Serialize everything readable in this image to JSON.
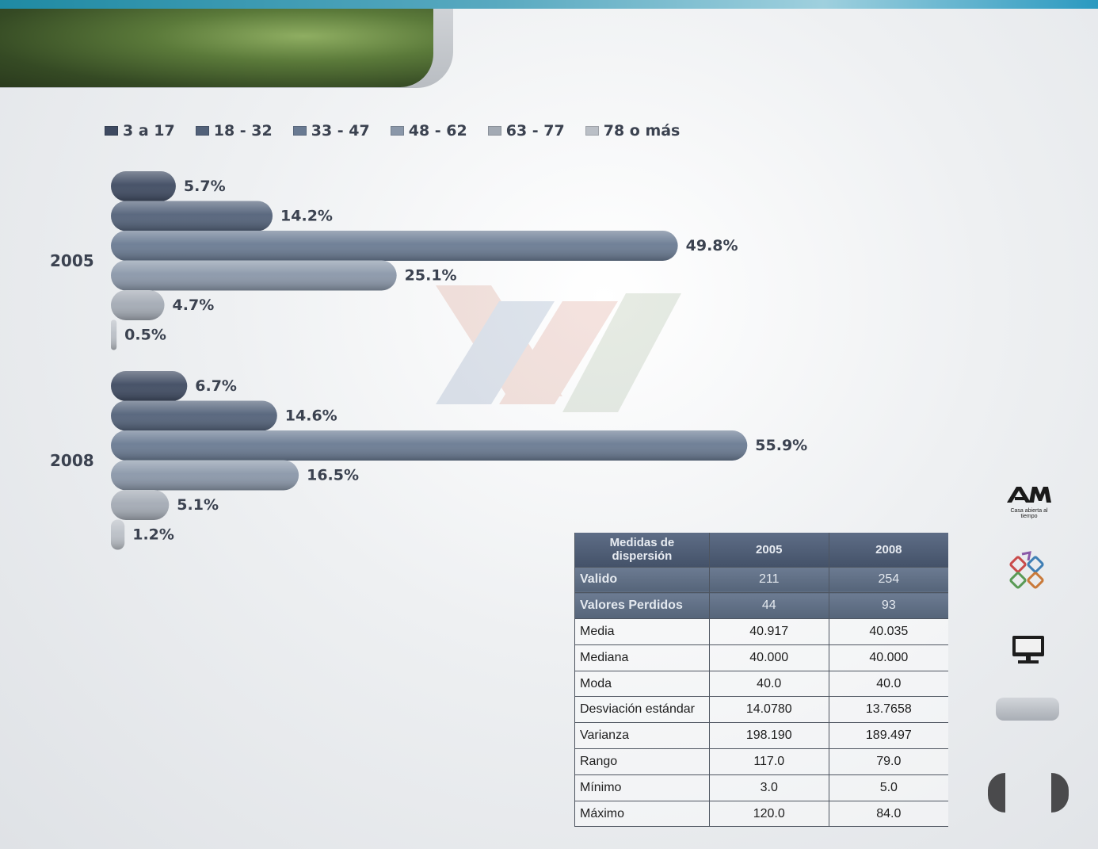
{
  "colors": {
    "series": [
      "#3e4a61",
      "#526179",
      "#697a92",
      "#8a97a9",
      "#a3aab4",
      "#babfc6"
    ]
  },
  "chart_data": {
    "type": "bar",
    "orientation": "horizontal",
    "categories": [
      "2005",
      "2008"
    ],
    "series": [
      {
        "name": "3 a 17",
        "values": [
          5.7,
          6.7
        ]
      },
      {
        "name": "18 - 32",
        "values": [
          14.2,
          14.6
        ]
      },
      {
        "name": "33 - 47",
        "values": [
          49.8,
          55.9
        ]
      },
      {
        "name": "48 - 62",
        "values": [
          25.1,
          16.5
        ]
      },
      {
        "name": "63 - 77",
        "values": [
          4.7,
          5.1
        ]
      },
      {
        "name": "78 o más",
        "values": [
          0.5,
          1.2
        ]
      }
    ],
    "data_labels": [
      [
        "5.7%",
        "14.2%",
        "49.8%",
        "25.1%",
        "4.7%",
        "0.5%"
      ],
      [
        "6.7%",
        "14.6%",
        "55.9%",
        "16.5%",
        "5.1%",
        "1.2%"
      ]
    ],
    "value_unit": "%",
    "legend_position": "top",
    "grid": false
  },
  "table": {
    "headers": [
      "Medidas de dispersión",
      "2005",
      "2008"
    ],
    "rows": [
      {
        "label": "Valido",
        "v2005": "211",
        "v2008": "254"
      },
      {
        "label": "Valores Perdidos",
        "v2005": "44",
        "v2008": "93"
      },
      {
        "label": "Media",
        "v2005": "40.917",
        "v2008": "40.035"
      },
      {
        "label": "Mediana",
        "v2005": "40.000",
        "v2008": "40.000"
      },
      {
        "label": "Moda",
        "v2005": "40.0",
        "v2008": "40.0"
      },
      {
        "label": "Desviación estándar",
        "v2005": "14.0780",
        "v2008": "13.7658"
      },
      {
        "label": "Varianza",
        "v2005": "198.190",
        "v2008": "189.497"
      },
      {
        "label": "Rango",
        "v2005": "117.0",
        "v2008": "79.0"
      },
      {
        "label": "Mínimo",
        "v2005": "3.0",
        "v2008": "5.0"
      },
      {
        "label": "Máximo",
        "v2005": "120.0",
        "v2008": "84.0"
      }
    ]
  },
  "logos": {
    "uam_caption": "Casa abierta al tiempo",
    "uam_letters": "UAM"
  },
  "nav": {
    "icons": [
      "monitor-icon",
      "prev-arrow-icon",
      "next-arrow-icon"
    ]
  }
}
